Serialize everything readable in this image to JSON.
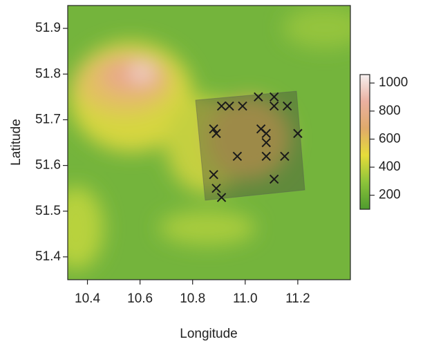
{
  "chart_data": {
    "type": "scatter",
    "x_label": "Longitude",
    "y_label": "Latitude",
    "x": [
      11.05,
      11.11,
      11.11,
      10.91,
      10.94,
      10.99,
      11.16,
      10.88,
      10.89,
      11.06,
      11.08,
      11.08,
      11.2,
      10.97,
      11.08,
      11.15,
      10.88,
      11.11,
      10.89,
      10.91
    ],
    "y": [
      51.75,
      51.75,
      51.73,
      51.73,
      51.73,
      51.73,
      51.73,
      51.68,
      51.67,
      51.68,
      51.67,
      51.65,
      51.67,
      51.62,
      51.62,
      51.62,
      51.58,
      51.57,
      51.55,
      51.53
    ],
    "color": "#1a1a1a",
    "xlim": [
      10.325,
      11.4
    ],
    "ylim": [
      51.35,
      51.95
    ],
    "xticks": [
      10.4,
      10.6,
      10.8,
      {
        "value": 11,
        "label": "11.0"
      },
      11.2
    ],
    "yticks": [
      51.4,
      51.5,
      51.6,
      51.7,
      51.8,
      51.9
    ],
    "colorbar": {
      "lim": [
        100,
        1060
      ],
      "ticks": [
        200,
        400,
        600,
        800,
        1000
      ],
      "colors": [
        "#4e9a2e",
        "#8cc43a",
        "#e6dc3a",
        "#e0aa6a",
        "#eab0a0",
        "#f6f0f0"
      ]
    }
  }
}
